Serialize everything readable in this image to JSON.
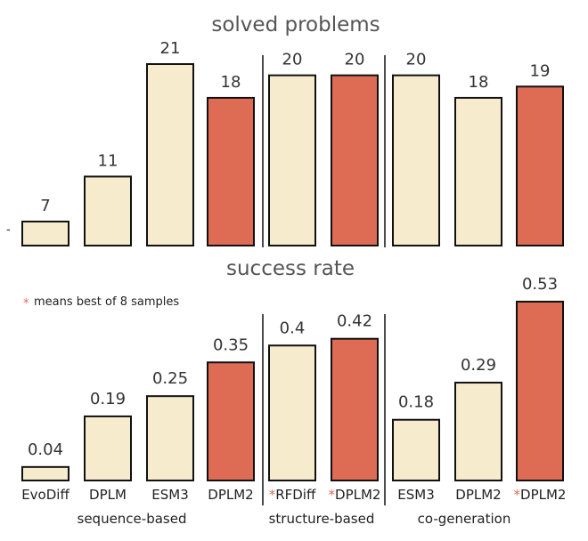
{
  "colors": {
    "baseline": "#f7ebcd",
    "dplm2": "#de6c54",
    "outline": "#111111"
  },
  "chart_data": [
    {
      "type": "bar",
      "title": "solved problems",
      "categories": [
        "EvoDiff",
        "DPLM",
        "ESM3",
        "DPLM2",
        "RFDiff",
        "DPLM2",
        "ESM3",
        "DPLM2",
        "DPLM2"
      ],
      "values": [
        7,
        11,
        21,
        18,
        20,
        20,
        20,
        18,
        19
      ],
      "value_labels": [
        "7",
        "11",
        "21",
        "18",
        "20",
        "20",
        "20",
        "18",
        "19"
      ],
      "highlight": [
        false,
        false,
        false,
        true,
        false,
        true,
        false,
        false,
        true
      ],
      "ylim": [
        5,
        21
      ],
      "y_tick_visible": "-"
    },
    {
      "type": "bar",
      "title": "success rate",
      "annotation": {
        "mark": "*",
        "text": "means best of 8 samples"
      },
      "categories": [
        "EvoDiff",
        "DPLM",
        "ESM3",
        "DPLM2",
        "RFDiff",
        "DPLM2",
        "ESM3",
        "DPLM2",
        "DPLM2"
      ],
      "values": [
        0.04,
        0.19,
        0.25,
        0.35,
        0.4,
        0.42,
        0.18,
        0.29,
        0.53
      ],
      "value_labels": [
        "0.04",
        "0.19",
        "0.25",
        "0.35",
        "0.4",
        "0.42",
        "0.18",
        "0.29",
        "0.53"
      ],
      "highlight": [
        false,
        false,
        false,
        true,
        false,
        true,
        false,
        false,
        true
      ],
      "starred": [
        false,
        false,
        false,
        false,
        true,
        true,
        false,
        false,
        true
      ],
      "ylim": [
        0,
        0.53
      ]
    }
  ],
  "groups": [
    "sequence-based",
    "structure-based",
    "co-generation"
  ]
}
